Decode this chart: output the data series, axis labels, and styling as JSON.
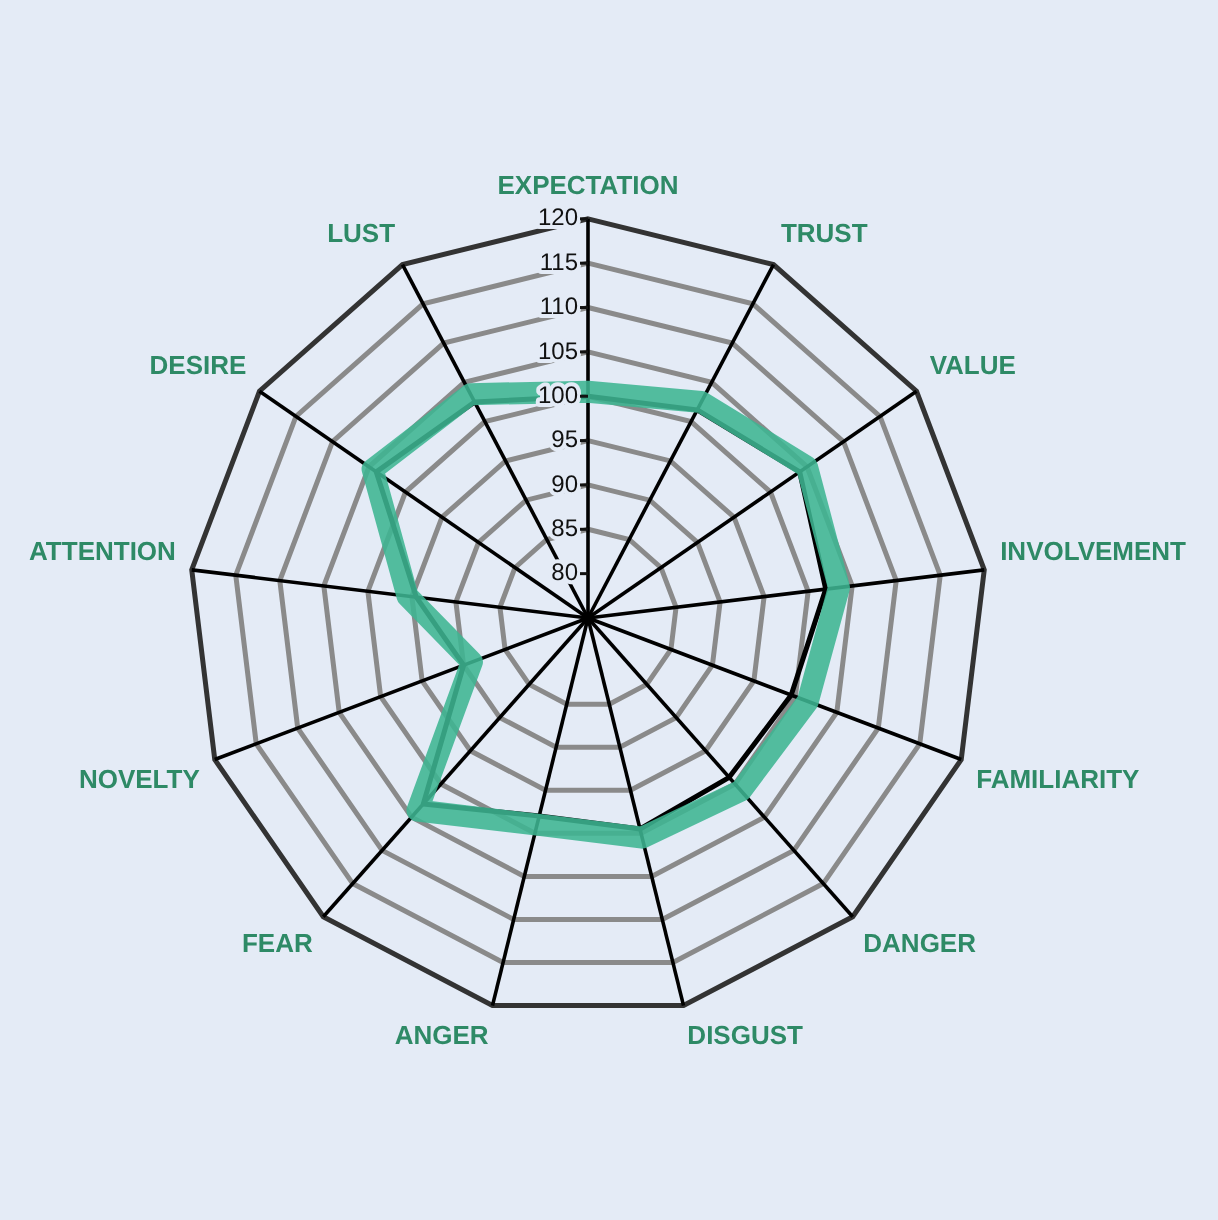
{
  "chart_data": {
    "type": "radar",
    "categories": [
      "EXPECTATION",
      "TRUST",
      "VALUE",
      "INVOLVEMENT",
      "FAMILIARITY",
      "DANGER",
      "DISGUST",
      "ANGER",
      "FEAR",
      "NOVELTY",
      "ATTENTION",
      "DESIRE",
      "LUST"
    ],
    "series": [
      {
        "color": "#3db592",
        "values": [
          100.5,
          102.5,
          105,
          103.5,
          101.5,
          101,
          100.5,
          99,
          104,
          89,
          95.5,
          104.5,
          103.5
        ]
      },
      {
        "color": "#000000",
        "values": [
          100,
          101.5,
          104,
          102,
          99.5,
          99,
          99.5,
          98,
          103,
          90,
          94.5,
          104,
          102.5
        ]
      }
    ],
    "ylim": [
      75,
      120
    ],
    "yticks": [
      80,
      85,
      90,
      95,
      100,
      105,
      110,
      115,
      120
    ],
    "grid": true,
    "marker": "none",
    "line_style": "solid"
  }
}
